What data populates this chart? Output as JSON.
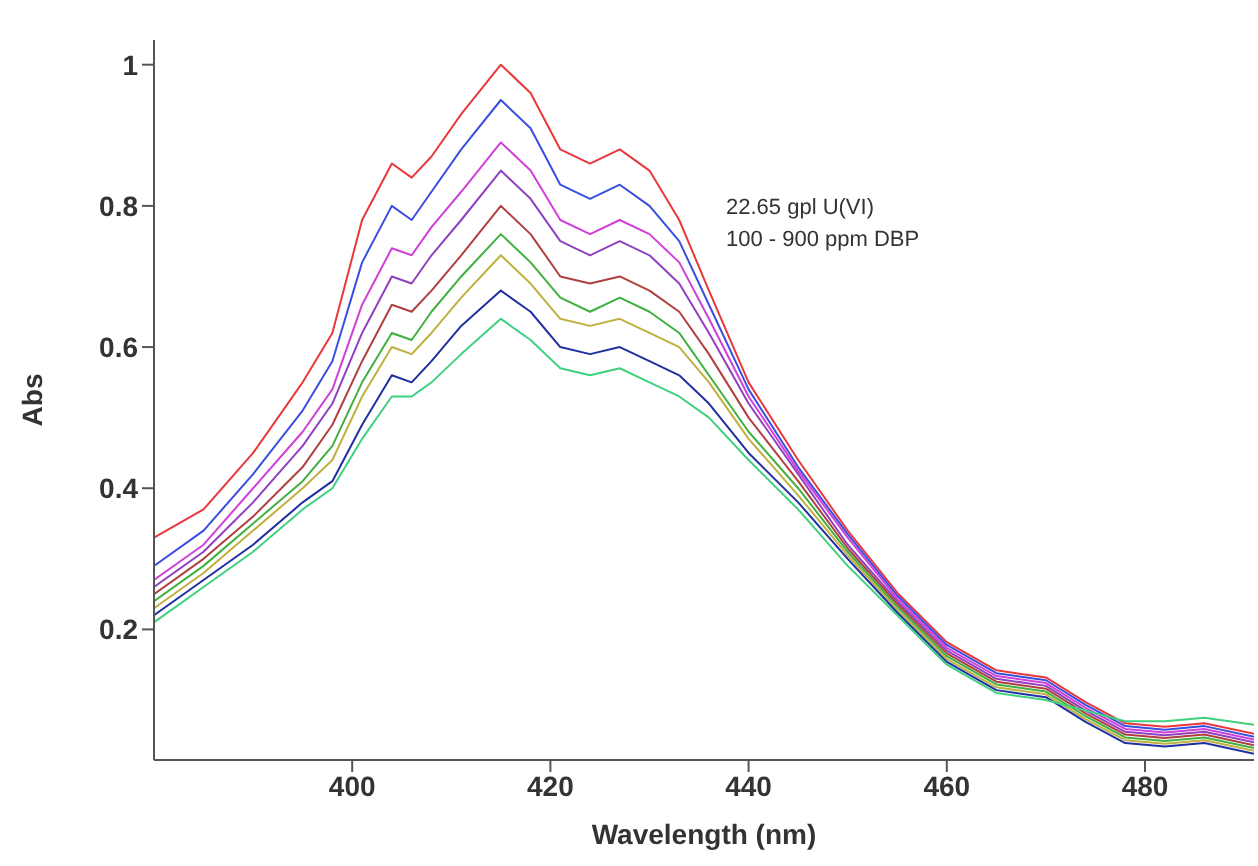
{
  "chart_data": {
    "type": "line",
    "xlabel": "Wavelength (nm)",
    "ylabel": "Abs",
    "annotations": [
      "22.65 gpl U(VI)",
      "100 - 900 ppm DBP"
    ],
    "x": [
      380,
      385,
      390,
      395,
      398,
      401,
      404,
      406,
      408,
      411,
      415,
      418,
      421,
      424,
      427,
      430,
      433,
      436,
      440,
      445,
      450,
      455,
      460,
      465,
      470,
      474,
      478,
      482,
      486,
      491
    ],
    "series": [
      {
        "color": "#e8383c",
        "values": [
          0.33,
          0.37,
          0.45,
          0.55,
          0.62,
          0.78,
          0.86,
          0.84,
          0.87,
          0.93,
          1.0,
          0.96,
          0.88,
          0.86,
          0.88,
          0.85,
          0.78,
          0.68,
          0.55,
          0.44,
          0.34,
          0.252,
          0.182,
          0.142,
          0.132,
          0.097,
          0.067,
          0.062,
          0.067,
          0.052
        ]
      },
      {
        "color": "#3a4fe0",
        "values": [
          0.29,
          0.34,
          0.42,
          0.51,
          0.58,
          0.72,
          0.8,
          0.78,
          0.82,
          0.88,
          0.95,
          0.91,
          0.83,
          0.81,
          0.83,
          0.8,
          0.75,
          0.66,
          0.54,
          0.43,
          0.335,
          0.248,
          0.178,
          0.138,
          0.128,
          0.093,
          0.063,
          0.058,
          0.063,
          0.048
        ]
      },
      {
        "color": "#d040d8",
        "values": [
          0.27,
          0.32,
          0.4,
          0.48,
          0.54,
          0.66,
          0.74,
          0.73,
          0.77,
          0.82,
          0.89,
          0.85,
          0.78,
          0.76,
          0.78,
          0.76,
          0.72,
          0.64,
          0.53,
          0.425,
          0.33,
          0.244,
          0.174,
          0.134,
          0.124,
          0.089,
          0.059,
          0.054,
          0.059,
          0.044
        ]
      },
      {
        "color": "#9040c0",
        "values": [
          0.26,
          0.31,
          0.38,
          0.46,
          0.52,
          0.62,
          0.7,
          0.69,
          0.73,
          0.78,
          0.85,
          0.81,
          0.75,
          0.73,
          0.75,
          0.73,
          0.69,
          0.62,
          0.52,
          0.42,
          0.32,
          0.24,
          0.17,
          0.13,
          0.12,
          0.085,
          0.055,
          0.05,
          0.055,
          0.04
        ]
      },
      {
        "color": "#b04040",
        "values": [
          0.25,
          0.3,
          0.36,
          0.43,
          0.49,
          0.58,
          0.66,
          0.65,
          0.68,
          0.73,
          0.8,
          0.76,
          0.7,
          0.69,
          0.7,
          0.68,
          0.65,
          0.59,
          0.5,
          0.41,
          0.315,
          0.236,
          0.166,
          0.126,
          0.116,
          0.081,
          0.051,
          0.046,
          0.051,
          0.036
        ]
      },
      {
        "color": "#40b040",
        "values": [
          0.24,
          0.29,
          0.35,
          0.41,
          0.46,
          0.55,
          0.62,
          0.61,
          0.65,
          0.7,
          0.76,
          0.72,
          0.67,
          0.65,
          0.67,
          0.65,
          0.62,
          0.56,
          0.48,
          0.4,
          0.31,
          0.232,
          0.162,
          0.122,
          0.112,
          0.077,
          0.047,
          0.042,
          0.047,
          0.032
        ]
      },
      {
        "color": "#c0b040",
        "values": [
          0.23,
          0.28,
          0.34,
          0.4,
          0.44,
          0.53,
          0.6,
          0.59,
          0.62,
          0.67,
          0.73,
          0.69,
          0.64,
          0.63,
          0.64,
          0.62,
          0.6,
          0.55,
          0.47,
          0.39,
          0.305,
          0.228,
          0.158,
          0.118,
          0.108,
          0.073,
          0.043,
          0.038,
          0.043,
          0.028
        ]
      },
      {
        "color": "#2030a0",
        "values": [
          0.22,
          0.27,
          0.32,
          0.38,
          0.41,
          0.49,
          0.56,
          0.55,
          0.58,
          0.63,
          0.68,
          0.65,
          0.6,
          0.59,
          0.6,
          0.58,
          0.56,
          0.52,
          0.45,
          0.38,
          0.3,
          0.224,
          0.154,
          0.114,
          0.104,
          0.069,
          0.039,
          0.034,
          0.039,
          0.024
        ]
      },
      {
        "color": "#40d080",
        "values": [
          0.21,
          0.26,
          0.31,
          0.37,
          0.4,
          0.47,
          0.53,
          0.53,
          0.55,
          0.59,
          0.64,
          0.61,
          0.57,
          0.56,
          0.57,
          0.55,
          0.53,
          0.5,
          0.44,
          0.37,
          0.29,
          0.22,
          0.15,
          0.11,
          0.1,
          0.085,
          0.07,
          0.07,
          0.075,
          0.065
        ]
      }
    ],
    "xlim": [
      380,
      491
    ],
    "ylim": [
      0.015,
      1.035
    ],
    "xticks": [
      400,
      420,
      440,
      460,
      480
    ],
    "yticks": [
      0.2,
      0.4,
      0.6,
      0.8,
      1
    ],
    "grid": false,
    "legend": false,
    "marker": "none",
    "line_style": "solid"
  }
}
